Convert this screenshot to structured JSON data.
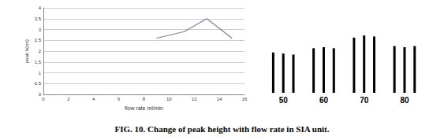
{
  "caption": "FIG. 10. Change of peak height with flow rate in SIA unit.",
  "chart_data": [
    {
      "type": "line",
      "x_label": "flow rate ml/min",
      "y_label": "peak h(cm)",
      "x": [
        9,
        11.2,
        13,
        15
      ],
      "values": [
        2.6,
        2.9,
        3.5,
        2.6
      ],
      "color": "#7f7f99",
      "xlim": [
        0,
        16
      ],
      "xticks": [
        0,
        2,
        4,
        6,
        8,
        10,
        12,
        14,
        16
      ],
      "ylim": [
        0,
        4
      ],
      "yticks": [
        0,
        0.5,
        1,
        1.5,
        2,
        2.5,
        3,
        3.5,
        4
      ],
      "grid": true
    },
    {
      "type": "bar",
      "categories": [
        null,
        "50",
        null,
        null,
        null,
        "60",
        null,
        null,
        null,
        "70",
        null,
        null,
        null,
        "80",
        null,
        null
      ],
      "values": [
        1.9,
        1.85,
        1.8,
        null,
        2.1,
        2.15,
        2.1,
        null,
        2.6,
        2.7,
        2.65,
        null,
        2.2,
        2.15,
        2.2,
        null
      ],
      "color": "#000000",
      "ylim": [
        0,
        4
      ],
      "tick_labels": "x"
    }
  ]
}
